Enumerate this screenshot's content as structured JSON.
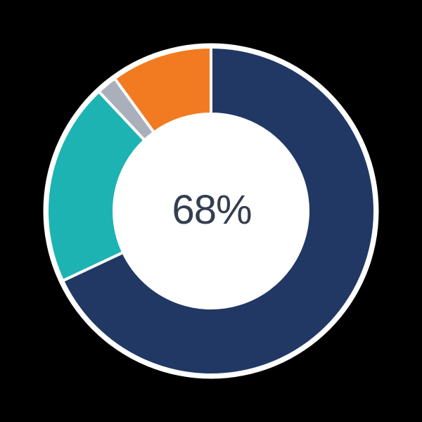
{
  "chart_data": {
    "type": "pie",
    "subtype": "donut",
    "title": "",
    "center_label": "68%",
    "legend": "none",
    "start_angle_deg": 0,
    "clockwise": true,
    "segments": [
      {
        "name": "navy",
        "value": 68,
        "color": "#213864"
      },
      {
        "name": "teal",
        "value": 20,
        "color": "#1DB3B2"
      },
      {
        "name": "gray",
        "value": 2,
        "color": "#A9B0BB"
      },
      {
        "name": "orange",
        "value": 10,
        "color": "#F27B21"
      }
    ],
    "colors": {
      "background": "#000000",
      "ring_outline": "#FFFFFF",
      "hole_fill": "#FFFFFF",
      "center_label_color": "#333E4F"
    }
  }
}
